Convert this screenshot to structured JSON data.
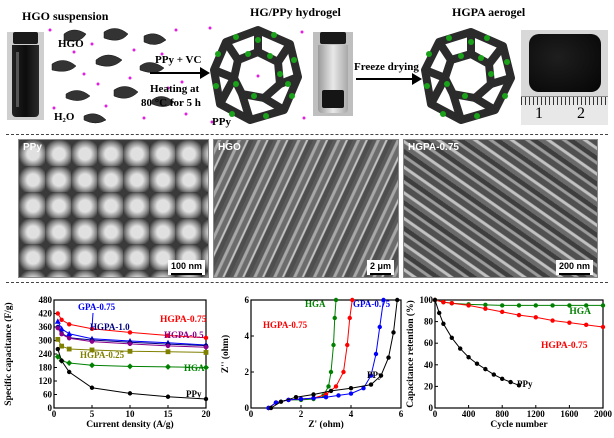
{
  "schematic": {
    "titles": {
      "hgo": "HGO suspension",
      "hydrogel": "HG/PPy hydrogel",
      "aerogel": "HGPA aerogel"
    },
    "labels": {
      "hgo": "HGO",
      "h2o": "H₂O",
      "ppy": "PPy"
    },
    "arrow1": {
      "line1": "PPy + VC",
      "line2": "Heating at",
      "line3": "80 °C for 5 h"
    },
    "arrow2": "Freeze drying",
    "ruler_marks": [
      "1",
      "2"
    ]
  },
  "sem": [
    {
      "label": "PPy",
      "scale": "100 nm"
    },
    {
      "label": "HGO",
      "scale": "2 μm"
    },
    {
      "label": "HGPA-0.75",
      "scale": "200 nm"
    }
  ],
  "chart_data": [
    {
      "type": "line",
      "xlabel": "Current density (A/g)",
      "ylabel": "Specific capacitance (F/g)",
      "xlim": [
        0,
        20
      ],
      "ylim": [
        0,
        480
      ],
      "xticks": [
        0,
        5,
        10,
        15,
        20
      ],
      "yticks": [
        0,
        60,
        120,
        180,
        240,
        300,
        360,
        420,
        480
      ],
      "series": [
        {
          "name": "HGPA-0.75",
          "color": "#ff0000",
          "marker": "circle",
          "x": [
            0.5,
            1,
            2,
            5,
            10,
            15,
            20
          ],
          "y": [
            420,
            392,
            372,
            352,
            336,
            322,
            312
          ]
        },
        {
          "name": "GPA-0.75",
          "color": "#0000ff",
          "marker": "triangle",
          "x": [
            0.5,
            1,
            2,
            5,
            10,
            15,
            20
          ],
          "y": [
            385,
            352,
            330,
            308,
            298,
            290,
            280
          ]
        },
        {
          "name": "HGPA-1.0",
          "color": "#000080",
          "marker": "circle",
          "x": [
            0.5,
            1,
            2,
            5,
            10,
            15,
            20
          ],
          "y": [
            360,
            332,
            312,
            302,
            292,
            284,
            277
          ]
        },
        {
          "name": "HGPA-0.5",
          "color": "#8B008B",
          "marker": "circle",
          "x": [
            0.5,
            1,
            2,
            5,
            10,
            15,
            20
          ],
          "y": [
            355,
            328,
            310,
            295,
            285,
            276,
            270
          ]
        },
        {
          "name": "HGPA-0.25",
          "color": "#808000",
          "marker": "square",
          "x": [
            0.5,
            1,
            2,
            5,
            10,
            15,
            20
          ],
          "y": [
            305,
            275,
            262,
            258,
            252,
            250,
            247
          ]
        },
        {
          "name": "HGA",
          "color": "#008000",
          "marker": "diamond",
          "x": [
            0.5,
            1,
            2,
            5,
            10,
            15,
            20
          ],
          "y": [
            228,
            210,
            200,
            190,
            185,
            183,
            180
          ]
        },
        {
          "name": "PPy",
          "color": "#000000",
          "marker": "circle",
          "x": [
            0.5,
            1,
            2,
            5,
            10,
            15,
            20
          ],
          "y": [
            262,
            210,
            160,
            90,
            65,
            50,
            40
          ]
        }
      ]
    },
    {
      "type": "line",
      "xlabel": "Z' (ohm)",
      "ylabel": "Z'' (ohm)",
      "xlim": [
        0,
        6
      ],
      "ylim": [
        0,
        6
      ],
      "xticks": [
        0,
        2,
        4,
        6
      ],
      "yticks": [
        0,
        2,
        4,
        6
      ],
      "series": [
        {
          "name": "HGA",
          "color": "#008000",
          "x": [
            0.7,
            1.0,
            1.5,
            2.0,
            2.5,
            2.9,
            3.1,
            3.2,
            3.3,
            3.35,
            3.4
          ],
          "y": [
            0,
            0.3,
            0.45,
            0.45,
            0.5,
            0.7,
            1.2,
            2.0,
            3.5,
            5.0,
            6.0
          ]
        },
        {
          "name": "HGPA-0.75",
          "color": "#ff0000",
          "x": [
            0.7,
            1.0,
            1.5,
            2.0,
            2.5,
            3.0,
            3.4,
            3.7,
            3.85,
            3.95,
            4.05
          ],
          "y": [
            0,
            0.3,
            0.45,
            0.5,
            0.55,
            0.75,
            1.2,
            2.0,
            3.5,
            5.0,
            6.0
          ]
        },
        {
          "name": "GPA-0.75",
          "color": "#0000ff",
          "x": [
            0.7,
            1.0,
            1.5,
            2.0,
            2.5,
            3.0,
            3.5,
            4.0,
            4.5,
            4.8,
            5.0,
            5.15,
            5.3
          ],
          "y": [
            0,
            0.3,
            0.45,
            0.5,
            0.55,
            0.6,
            0.7,
            0.8,
            1.1,
            1.8,
            3.0,
            4.5,
            6.0
          ]
        },
        {
          "name": "PPy",
          "color": "#000000",
          "x": [
            0.8,
            1.2,
            1.8,
            2.5,
            3.2,
            4.0,
            4.8,
            5.2,
            5.5,
            5.7,
            5.85
          ],
          "y": [
            0,
            0.35,
            0.6,
            0.75,
            0.95,
            1.1,
            1.3,
            1.8,
            2.8,
            4.2,
            6.0
          ]
        }
      ]
    },
    {
      "type": "line",
      "xlabel": "Cycle number",
      "ylabel": "Capacitance retention (%)",
      "xlim": [
        0,
        2000
      ],
      "ylim": [
        0,
        100
      ],
      "xticks": [
        0,
        400,
        800,
        1200,
        1600,
        2000
      ],
      "yticks": [
        0,
        20,
        40,
        60,
        80,
        100
      ],
      "series": [
        {
          "name": "HGA",
          "color": "#008000",
          "x": [
            0,
            100,
            200,
            400,
            600,
            800,
            1000,
            1200,
            1400,
            1600,
            1800,
            2000
          ],
          "y": [
            100,
            98,
            97,
            96,
            95.5,
            95,
            95,
            95,
            95,
            95,
            95,
            95
          ]
        },
        {
          "name": "HGPA-0.75",
          "color": "#ff0000",
          "x": [
            0,
            100,
            200,
            400,
            600,
            800,
            1000,
            1200,
            1400,
            1600,
            1800,
            2000
          ],
          "y": [
            100,
            98,
            97,
            95,
            92,
            89,
            86,
            84,
            81,
            79,
            77,
            75
          ]
        },
        {
          "name": "PPy",
          "color": "#000000",
          "x": [
            0,
            50,
            100,
            200,
            300,
            400,
            500,
            600,
            700,
            800,
            900,
            1000
          ],
          "y": [
            100,
            88,
            78,
            65,
            55,
            47,
            41,
            36,
            31,
            27,
            24,
            21
          ]
        }
      ]
    }
  ]
}
